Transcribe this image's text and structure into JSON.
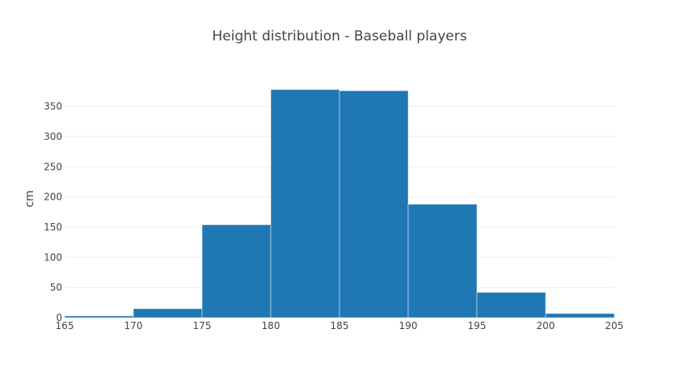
{
  "chart_data": {
    "type": "bar",
    "title": "Height distribution - Baseball players",
    "xlabel": "",
    "ylabel": "cm",
    "xlim": [
      165,
      205
    ],
    "ylim": [
      0,
      395
    ],
    "bin_width": 5,
    "bins": [
      {
        "start": 165,
        "end": 170,
        "value": 3
      },
      {
        "start": 170,
        "end": 175,
        "value": 15
      },
      {
        "start": 175,
        "end": 180,
        "value": 154
      },
      {
        "start": 180,
        "end": 185,
        "value": 378
      },
      {
        "start": 185,
        "end": 190,
        "value": 376
      },
      {
        "start": 190,
        "end": 195,
        "value": 188
      },
      {
        "start": 195,
        "end": 200,
        "value": 42
      },
      {
        "start": 200,
        "end": 205,
        "value": 7
      }
    ],
    "x_ticks": [
      "165",
      "170",
      "175",
      "180",
      "185",
      "190",
      "195",
      "200",
      "205"
    ],
    "y_ticks": [
      "0",
      "50",
      "100",
      "150",
      "200",
      "250",
      "300",
      "350"
    ],
    "grid": true,
    "legend": "none",
    "bar_color": "#1f77b4"
  }
}
